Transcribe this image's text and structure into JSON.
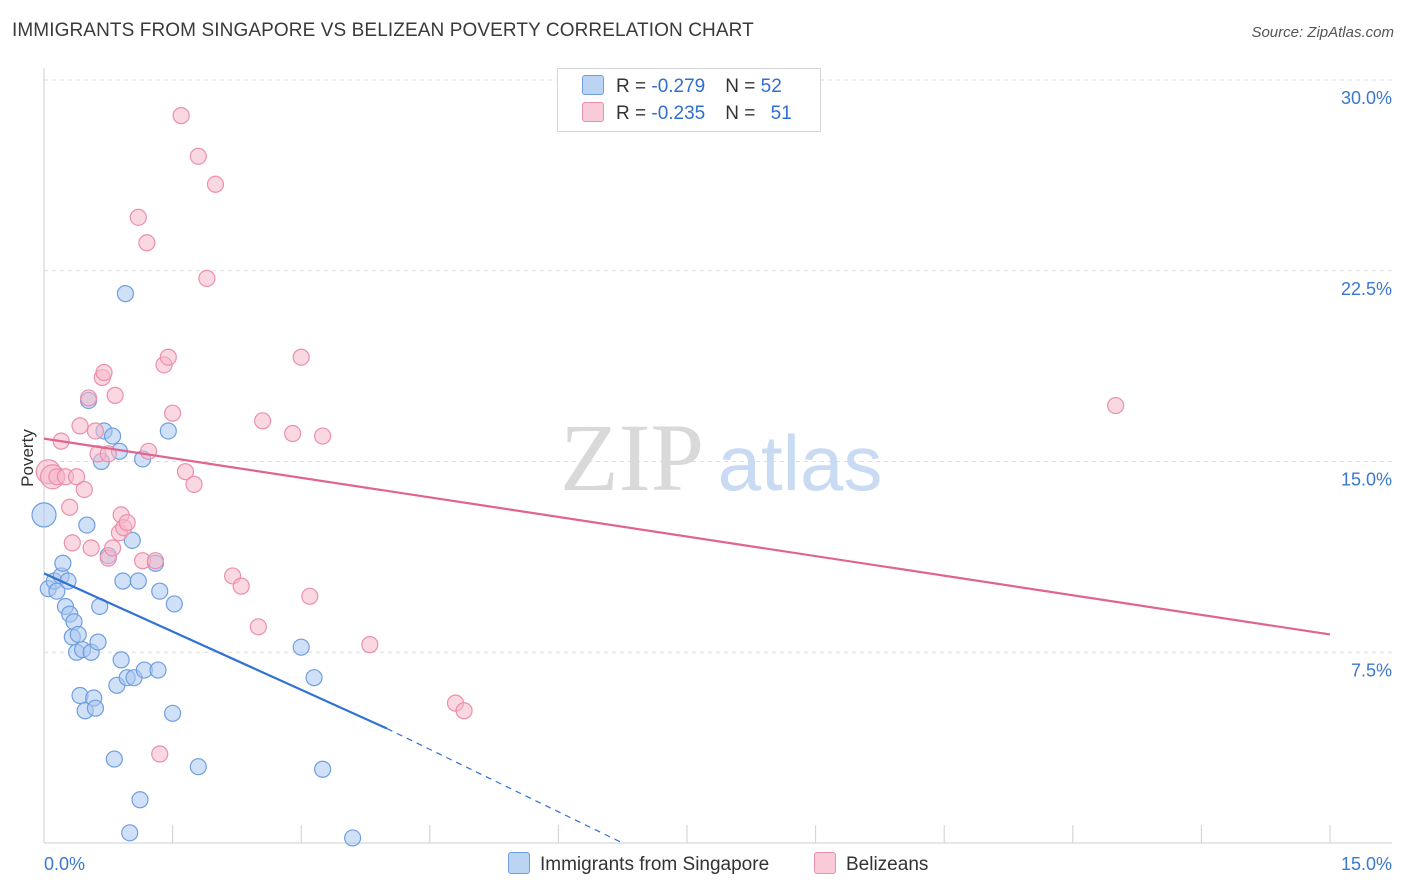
{
  "title": "IMMIGRANTS FROM SINGAPORE VS BELIZEAN POVERTY CORRELATION CHART",
  "source": "Source: ZipAtlas.com",
  "watermark": {
    "zip": "ZIP",
    "atlas": "atlas"
  },
  "colors": {
    "blue_fill": "#a9c7f0",
    "blue_stroke": "#6f9fe0",
    "blue_line": "#2f72d3",
    "pink_fill": "#f6b8cb",
    "pink_stroke": "#ec8fac",
    "pink_line": "#e06490",
    "axis_label": "#3a78cf",
    "grid": "#dedede"
  },
  "legend_top": {
    "blue": {
      "r_label": "R = ",
      "r_value": "-0.279",
      "n_label": "N = ",
      "n_value": "52"
    },
    "pink": {
      "r_label": "R = ",
      "r_value": "-0.235",
      "n_label": "N = ",
      "n_value": "51"
    }
  },
  "legend_bottom": {
    "blue_label": "Immigrants from Singapore",
    "pink_label": "Belizeans"
  },
  "chart_data": {
    "type": "scatter",
    "ylabel": "Poverty",
    "xlim": [
      0,
      15.0
    ],
    "ylim": [
      0,
      30.0
    ],
    "x_tick_labels": [
      {
        "value": 0,
        "label": "0.0%"
      },
      {
        "value": 15.0,
        "label": "15.0%"
      }
    ],
    "y_tick_labels": [
      {
        "value": 7.5,
        "label": "7.5%"
      },
      {
        "value": 15.0,
        "label": "15.0%"
      },
      {
        "value": 22.5,
        "label": "22.5%"
      },
      {
        "value": 30.0,
        "label": "30.0%"
      }
    ],
    "series": [
      {
        "name": "Immigrants from Singapore",
        "color_key": "blue",
        "points": [
          [
            0.0,
            12.9
          ],
          [
            0.05,
            10.0
          ],
          [
            0.12,
            10.3
          ],
          [
            0.15,
            9.9
          ],
          [
            0.2,
            10.5
          ],
          [
            0.22,
            11.0
          ],
          [
            0.25,
            9.3
          ],
          [
            0.28,
            10.3
          ],
          [
            0.3,
            9.0
          ],
          [
            0.33,
            8.1
          ],
          [
            0.35,
            8.7
          ],
          [
            0.38,
            7.5
          ],
          [
            0.4,
            8.2
          ],
          [
            0.42,
            5.8
          ],
          [
            0.45,
            7.6
          ],
          [
            0.48,
            5.2
          ],
          [
            0.5,
            12.5
          ],
          [
            0.52,
            17.4
          ],
          [
            0.55,
            7.5
          ],
          [
            0.58,
            5.7
          ],
          [
            0.6,
            5.3
          ],
          [
            0.63,
            7.9
          ],
          [
            0.65,
            9.3
          ],
          [
            0.67,
            15.0
          ],
          [
            0.7,
            16.2
          ],
          [
            0.75,
            11.3
          ],
          [
            0.8,
            16.0
          ],
          [
            0.82,
            3.3
          ],
          [
            0.85,
            6.2
          ],
          [
            0.88,
            15.4
          ],
          [
            0.9,
            7.2
          ],
          [
            0.92,
            10.3
          ],
          [
            0.95,
            21.6
          ],
          [
            0.97,
            6.5
          ],
          [
            1.0,
            0.4
          ],
          [
            1.03,
            11.9
          ],
          [
            1.05,
            6.5
          ],
          [
            1.1,
            10.3
          ],
          [
            1.12,
            1.7
          ],
          [
            1.15,
            15.1
          ],
          [
            1.17,
            6.8
          ],
          [
            1.3,
            11.0
          ],
          [
            1.33,
            6.8
          ],
          [
            1.35,
            9.9
          ],
          [
            1.45,
            16.2
          ],
          [
            1.5,
            5.1
          ],
          [
            1.52,
            9.4
          ],
          [
            1.8,
            3.0
          ],
          [
            3.0,
            7.7
          ],
          [
            3.15,
            6.5
          ],
          [
            3.25,
            2.9
          ],
          [
            3.6,
            0.2
          ]
        ]
      },
      {
        "name": "Belizeans",
        "color_key": "pink",
        "points": [
          [
            0.05,
            14.6
          ],
          [
            0.1,
            14.4
          ],
          [
            0.15,
            14.4
          ],
          [
            0.2,
            15.8
          ],
          [
            0.25,
            14.4
          ],
          [
            0.3,
            13.2
          ],
          [
            0.33,
            11.8
          ],
          [
            0.38,
            14.4
          ],
          [
            0.42,
            16.4
          ],
          [
            0.47,
            13.9
          ],
          [
            0.52,
            17.5
          ],
          [
            0.55,
            11.6
          ],
          [
            0.6,
            16.2
          ],
          [
            0.63,
            15.3
          ],
          [
            0.68,
            18.3
          ],
          [
            0.7,
            18.5
          ],
          [
            0.75,
            11.2
          ],
          [
            0.8,
            11.6
          ],
          [
            0.83,
            17.6
          ],
          [
            0.88,
            12.2
          ],
          [
            0.9,
            12.9
          ],
          [
            0.93,
            12.4
          ],
          [
            0.97,
            12.6
          ],
          [
            1.1,
            24.6
          ],
          [
            1.15,
            11.1
          ],
          [
            1.2,
            23.6
          ],
          [
            1.22,
            15.4
          ],
          [
            1.3,
            11.1
          ],
          [
            1.35,
            3.5
          ],
          [
            1.4,
            18.8
          ],
          [
            1.45,
            19.1
          ],
          [
            1.5,
            16.9
          ],
          [
            1.6,
            28.6
          ],
          [
            1.65,
            14.6
          ],
          [
            1.75,
            14.1
          ],
          [
            1.8,
            27.0
          ],
          [
            1.9,
            22.2
          ],
          [
            2.0,
            25.9
          ],
          [
            2.2,
            10.5
          ],
          [
            2.3,
            10.1
          ],
          [
            2.5,
            8.5
          ],
          [
            2.55,
            16.6
          ],
          [
            2.9,
            16.1
          ],
          [
            3.0,
            19.1
          ],
          [
            3.1,
            9.7
          ],
          [
            3.25,
            16.0
          ],
          [
            3.8,
            7.8
          ],
          [
            4.8,
            5.5
          ],
          [
            4.9,
            5.2
          ],
          [
            12.5,
            17.2
          ],
          [
            0.75,
            15.3
          ]
        ]
      }
    ],
    "trend_lines": [
      {
        "series": "Immigrants from Singapore",
        "x": [
          0.0,
          4.0
        ],
        "y": [
          10.6,
          4.5
        ],
        "dashed_to": [
          6.75,
          0.0
        ]
      },
      {
        "series": "Belizeans",
        "x": [
          0.0,
          15.0
        ],
        "y": [
          15.9,
          8.2
        ]
      }
    ]
  }
}
